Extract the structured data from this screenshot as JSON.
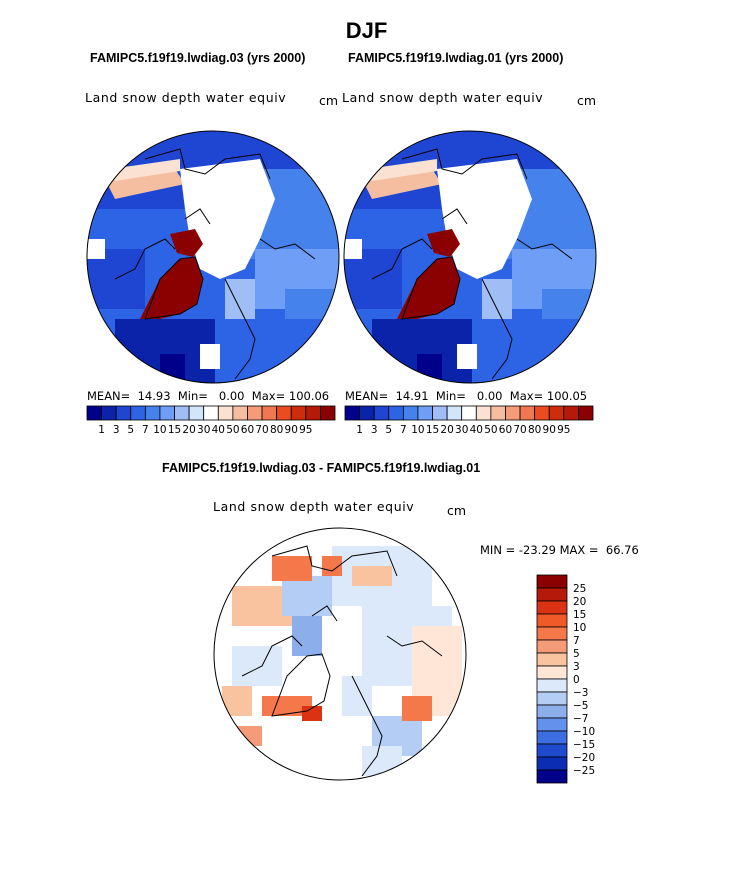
{
  "title": "DJF",
  "panels": [
    {
      "case": "FAMIPC5.f19f19.lwdiag.03 (yrs 2000)",
      "variable": "Land snow depth water equiv",
      "units": "cm",
      "stats": {
        "mean_label": "MEAN=",
        "mean": "14.93",
        "min_label": "Min=",
        "min": "0.00",
        "max_label": "Max=",
        "max": "100.06"
      }
    },
    {
      "case": "FAMIPC5.f19f19.lwdiag.01 (yrs 2000)",
      "variable": "Land snow depth water equiv",
      "units": "cm",
      "stats": {
        "mean_label": "MEAN=",
        "mean": "14.91",
        "min_label": "Min=",
        "min": "0.00",
        "max_label": "Max=",
        "max": "100.05"
      }
    }
  ],
  "diff": {
    "title": "FAMIPC5.f19f19.lwdiag.03 - FAMIPC5.f19f19.lwdiag.01",
    "variable": "Land snow depth water equiv",
    "units": "cm",
    "minmax": {
      "min_label": "MIN =",
      "min": "-23.29",
      "max_label": "MAX =",
      "max": "66.76"
    }
  },
  "abs_colorbar": {
    "colors": [
      "#00008b",
      "#0a23a8",
      "#1e46d2",
      "#2d64e6",
      "#4682eb",
      "#6e9ef5",
      "#a0bef5",
      "#d2e6fa",
      "#ffffff",
      "#fae1d2",
      "#f5bea0",
      "#f59b78",
      "#f07850",
      "#eb4b1e",
      "#cd2d0a",
      "#b4190a",
      "#8b0000"
    ],
    "labels": [
      "1",
      "3",
      "5",
      "7",
      "10",
      "15",
      "20",
      "30",
      "40",
      "50",
      "60",
      "70",
      "80",
      "90",
      "95"
    ]
  },
  "diff_colorbar": {
    "colors": [
      "#8b0000",
      "#b4190a",
      "#dc3214",
      "#f05a28",
      "#f5784b",
      "#f59b78",
      "#fac3a0",
      "#ffe6d7",
      "#dce9fa",
      "#b4cdf5",
      "#8cafeb",
      "#6491eb",
      "#3c6ee1",
      "#1e4bcd",
      "#0a2db4",
      "#00008b"
    ],
    "labels": [
      "25",
      "20",
      "15",
      "10",
      "7",
      "5",
      "3",
      "0",
      "−3",
      "−5",
      "−7",
      "−10",
      "−15",
      "−20",
      "−25"
    ]
  },
  "chart_data": [
    {
      "type": "heatmap",
      "projection": "north-polar-stereographic",
      "title": "FAMIPC5.f19f19.lwdiag.03 (yrs 2000)",
      "variable": "Land snow depth water equiv",
      "units": "cm",
      "mean": 14.93,
      "min": 0.0,
      "max": 100.06,
      "levels": [
        1,
        3,
        5,
        7,
        10,
        15,
        20,
        30,
        40,
        50,
        60,
        70,
        80,
        90,
        95
      ]
    },
    {
      "type": "heatmap",
      "projection": "north-polar-stereographic",
      "title": "FAMIPC5.f19f19.lwdiag.01 (yrs 2000)",
      "variable": "Land snow depth water equiv",
      "units": "cm",
      "mean": 14.91,
      "min": 0.0,
      "max": 100.05,
      "levels": [
        1,
        3,
        5,
        7,
        10,
        15,
        20,
        30,
        40,
        50,
        60,
        70,
        80,
        90,
        95
      ]
    },
    {
      "type": "heatmap",
      "projection": "north-polar-stereographic",
      "title": "FAMIPC5.f19f19.lwdiag.03 - FAMIPC5.f19f19.lwdiag.01",
      "variable": "Land snow depth water equiv",
      "units": "cm",
      "min": -23.29,
      "max": 66.76,
      "levels": [
        -25,
        -20,
        -15,
        -10,
        -7,
        -5,
        -3,
        0,
        3,
        5,
        7,
        10,
        15,
        20,
        25
      ]
    }
  ]
}
